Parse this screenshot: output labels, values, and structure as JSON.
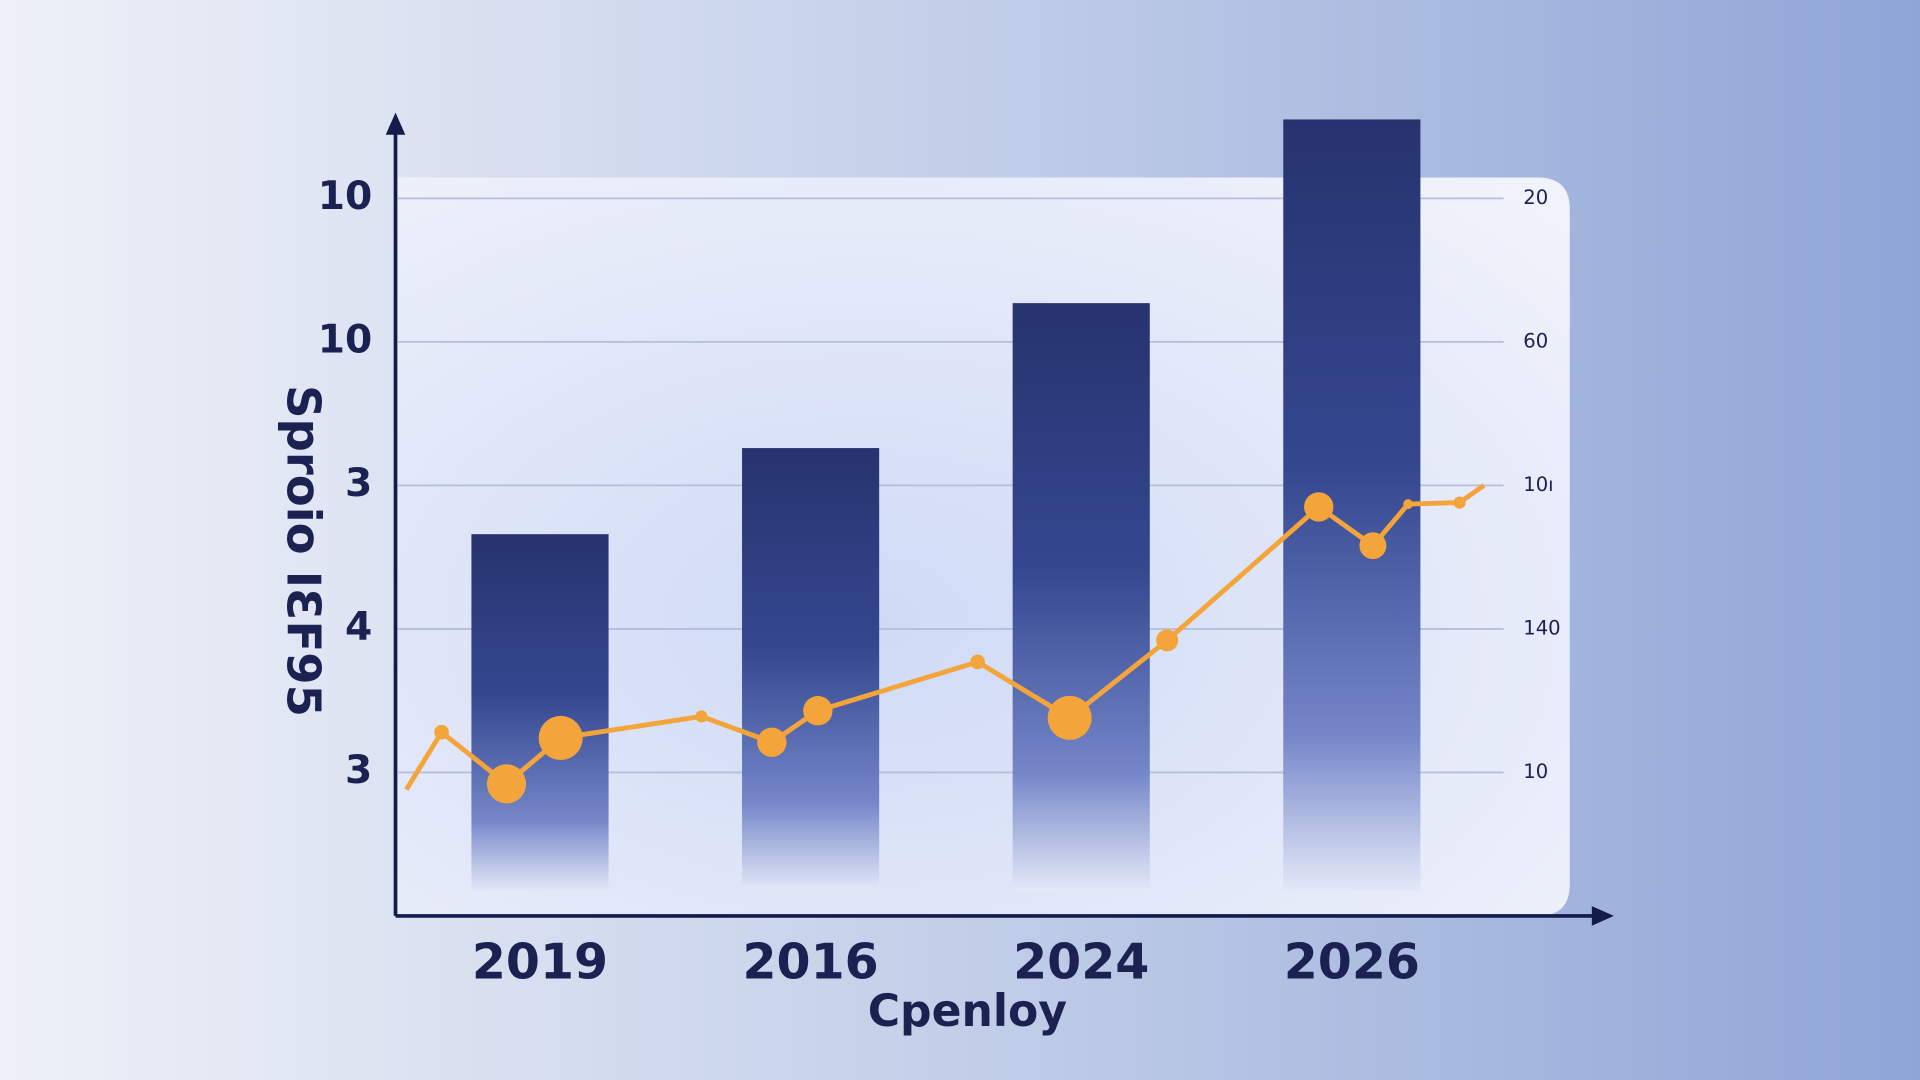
{
  "chart_data": {
    "type": "bar",
    "y_label": "Sproio IƐF95",
    "x_label": "Cpenloy",
    "categories": [
      "2019",
      "2016",
      "2024",
      "2026"
    ],
    "values": [
      2.66,
      3.26,
      4.27,
      5.55
    ],
    "color": "#27336f",
    "ylim": [
      0,
      5.5
    ],
    "yticks": [
      {
        "value": 1,
        "label": "3"
      },
      {
        "value": 2,
        "label": "4"
      },
      {
        "value": 3,
        "label": "3"
      },
      {
        "value": 4,
        "label": "10"
      },
      {
        "value": 5,
        "label": "10"
      }
    ],
    "y2lim": [
      0,
      5.5
    ],
    "y2ticks": [
      {
        "value": 1,
        "label": "10"
      },
      {
        "value": 2,
        "label": "140"
      },
      {
        "value": 3,
        "label": "10ı"
      },
      {
        "value": 4,
        "label": "60"
      },
      {
        "value": 5,
        "label": "20"
      }
    ],
    "grid": true,
    "line": {
      "type": "line",
      "color": "#f3a53b",
      "xlim": [
        -0.5,
        4
      ],
      "x": [
        -0.46,
        -0.33,
        -0.09,
        0.11,
        0.63,
        0.89,
        1.06,
        1.65,
        1.99,
        2.35,
        2.91,
        3.11,
        3.24,
        3.43,
        3.52
      ],
      "values": [
        0.88,
        1.28,
        0.92,
        1.24,
        1.39,
        1.21,
        1.43,
        1.77,
        1.38,
        1.92,
        2.85,
        2.58,
        2.87,
        2.88,
        3.0
      ],
      "sizes": [
        null,
        6,
        16,
        18,
        5,
        12,
        12,
        6,
        18,
        9,
        12,
        11,
        4,
        5,
        null
      ]
    }
  }
}
